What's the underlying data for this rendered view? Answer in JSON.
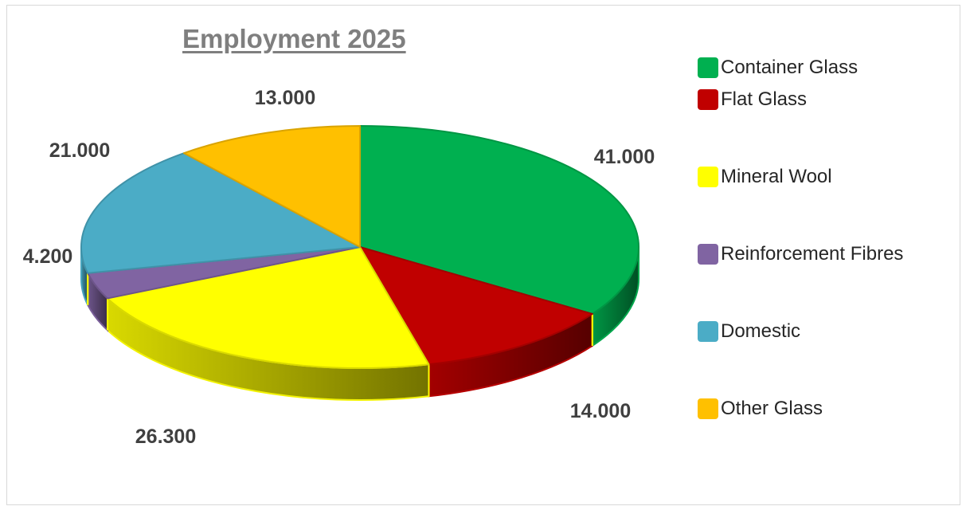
{
  "chart_data": {
    "type": "pie",
    "title": "Employment 2025",
    "categories": [
      "Container Glass",
      "Flat Glass",
      "Mineral Wool",
      "Reinforcement Fibres",
      "Domestic",
      "Other Glass"
    ],
    "values": [
      41000,
      14000,
      26300,
      4200,
      21000,
      13000
    ],
    "data_labels": [
      "41.000",
      "14.000",
      "26.300",
      "4.200",
      "21.000",
      "13.000"
    ],
    "colors": [
      "#00b050",
      "#c00000",
      "#ffff00",
      "#8064a2",
      "#4bacc6",
      "#ffc000"
    ],
    "style": "3d-pie",
    "legend_position": "right"
  }
}
